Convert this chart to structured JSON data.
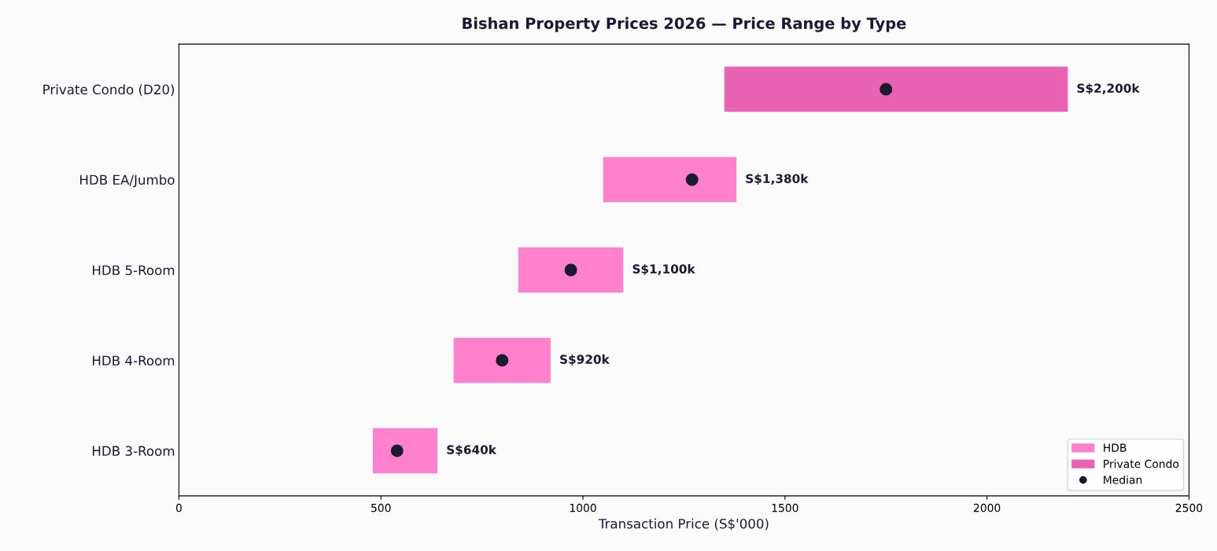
{
  "chart_data": {
    "type": "bar",
    "orientation": "horizontal",
    "title": "Bishan Property Prices 2026 — Price Range by Type",
    "xlabel": "Transaction Price (S$'000)",
    "categories": [
      "Private Condo (D20)",
      "HDB EA/Jumbo",
      "HDB 5-Room",
      "HDB 4-Room",
      "HDB 3-Room"
    ],
    "series": [
      {
        "name": "HDB",
        "color": "#ff80cc",
        "base": [
          null,
          1050,
          840,
          680,
          480
        ],
        "values": [
          null,
          330,
          260,
          240,
          160
        ],
        "value_labels": [
          null,
          "S$1,380k",
          "S$1,100k",
          "S$920k",
          "S$640k"
        ]
      },
      {
        "name": "Private Condo",
        "color": "#e962b4",
        "base": [
          1350,
          null,
          null,
          null,
          null
        ],
        "values": [
          850,
          null,
          null,
          null,
          null
        ],
        "value_labels": [
          "S$2,200k",
          null,
          null,
          null,
          null
        ]
      },
      {
        "name": "Median",
        "type": "scatter",
        "color": "#1a1a33",
        "marker": "circle",
        "values": [
          1750,
          1270,
          970,
          800,
          540
        ]
      }
    ],
    "xlim": [
      0,
      2500
    ],
    "xticks": [
      0,
      500,
      1000,
      1500,
      2000,
      2500
    ],
    "grid": false,
    "legend": "bottom right"
  }
}
